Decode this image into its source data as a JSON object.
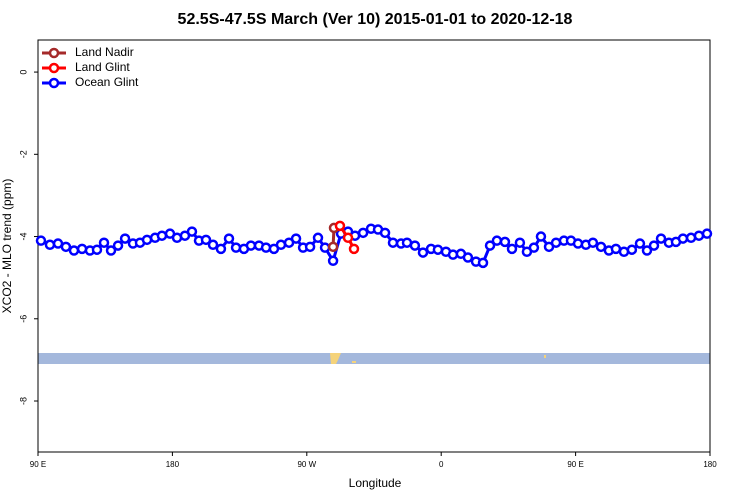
{
  "chart_data": {
    "type": "line",
    "title": "52.5S-47.5S March (Ver 10)   2015-01-01 to 2020-12-18",
    "xlabel": "Longitude",
    "ylabel": "XCO2 - MLO trend (ppm)",
    "xlim": [
      90,
      540
    ],
    "ylim": [
      -9.24,
      0.78
    ],
    "xticks": [
      {
        "value": 90,
        "label": "90 E"
      },
      180,
      {
        "value": 270,
        "label": "90 W"
      },
      {
        "value": 360,
        "label": "0"
      },
      {
        "value": 450,
        "label": "90 E"
      },
      {
        "value": 540,
        "label": "180"
      }
    ],
    "yticks": [
      0,
      -2,
      -4,
      -6,
      -8
    ],
    "legend": "top-left",
    "series": [
      {
        "name": "Land Nadir",
        "color": "#a52a2a",
        "x": [
          288.2,
          287.6
        ],
        "values": [
          -3.79,
          -4.25
        ]
      },
      {
        "name": "Land Glint",
        "color": "#ff0000",
        "x": [
          292.2,
          297.6,
          301.6
        ],
        "values": [
          -3.74,
          -4.03,
          -4.3
        ]
      },
      {
        "name": "Ocean Glint",
        "color": "#0000ff",
        "x": [
          92.0,
          98.0,
          103.4,
          108.7,
          114.1,
          119.5,
          124.8,
          129.5,
          134.2,
          138.9,
          143.6,
          148.3,
          153.6,
          158.3,
          163.0,
          168.4,
          173.0,
          178.4,
          183.1,
          188.4,
          193.1,
          197.8,
          202.5,
          207.2,
          212.5,
          217.9,
          222.6,
          227.9,
          232.6,
          238.0,
          242.7,
          248.0,
          252.7,
          258.1,
          262.8,
          267.5,
          272.2,
          277.5,
          282.2,
          287.6,
          292.9,
          297.6,
          302.3,
          307.7,
          313.0,
          317.7,
          322.4,
          327.7,
          333.1,
          337.1,
          342.4,
          347.8,
          353.2,
          357.8,
          363.2,
          367.9,
          373.2,
          377.9,
          383.3,
          388.0,
          392.7,
          397.3,
          402.7,
          407.4,
          412.7,
          417.4,
          422.1,
          426.8,
          432.2,
          436.9,
          442.2,
          446.9,
          451.6,
          456.9,
          461.6,
          467.0,
          472.3,
          477.0,
          482.4,
          487.7,
          493.1,
          497.8,
          502.5,
          507.2,
          512.5,
          517.2,
          521.9,
          527.3,
          532.6,
          538.0
        ],
        "values": [
          -4.1,
          -4.2,
          -4.17,
          -4.25,
          -4.34,
          -4.3,
          -4.34,
          -4.32,
          -4.15,
          -4.34,
          -4.22,
          -4.05,
          -4.17,
          -4.15,
          -4.08,
          -4.03,
          -3.98,
          -3.93,
          -4.03,
          -3.98,
          -3.88,
          -4.1,
          -4.08,
          -4.2,
          -4.3,
          -4.05,
          -4.27,
          -4.3,
          -4.22,
          -4.22,
          -4.27,
          -4.3,
          -4.2,
          -4.15,
          -4.05,
          -4.27,
          -4.25,
          -4.03,
          -4.27,
          -4.59,
          -3.93,
          -3.88,
          -3.98,
          -3.91,
          -3.81,
          -3.83,
          -3.91,
          -4.15,
          -4.17,
          -4.15,
          -4.22,
          -4.39,
          -4.3,
          -4.32,
          -4.37,
          -4.44,
          -4.42,
          -4.51,
          -4.61,
          -4.64,
          -4.22,
          -4.1,
          -4.13,
          -4.3,
          -4.15,
          -4.37,
          -4.27,
          -4.0,
          -4.25,
          -4.15,
          -4.1,
          -4.1,
          -4.17,
          -4.2,
          -4.15,
          -4.25,
          -4.34,
          -4.3,
          -4.37,
          -4.32,
          -4.17,
          -4.34,
          -4.22,
          -4.05,
          -4.15,
          -4.13,
          -4.05,
          -4.03,
          -3.98,
          -3.93
        ]
      }
    ]
  }
}
